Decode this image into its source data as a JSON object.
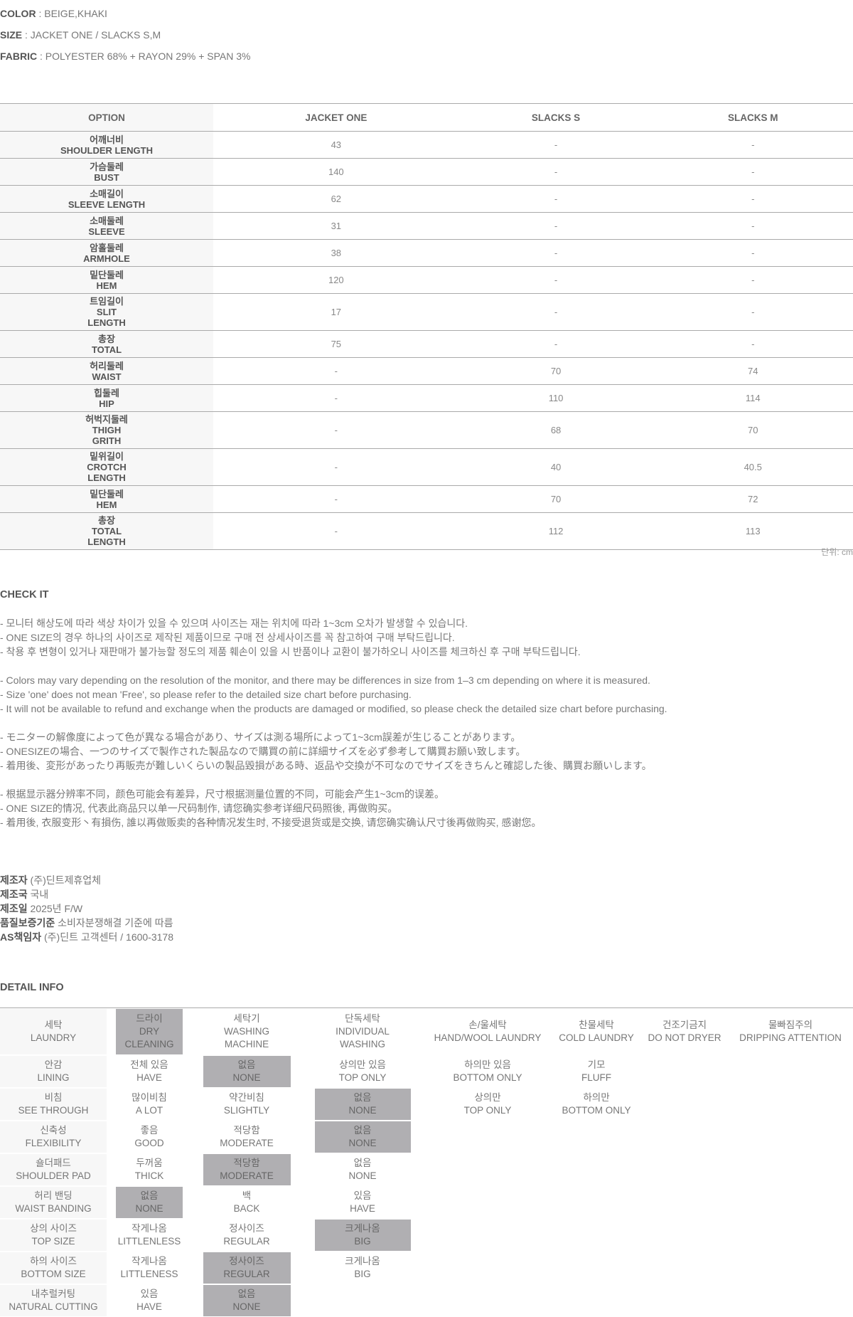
{
  "specs": [
    {
      "label": "COLOR",
      "value": ": BEIGE,KHAKI"
    },
    {
      "label": "SIZE",
      "value": ": JACKET ONE / SLACKS S,M"
    },
    {
      "label": "FABRIC",
      "value": ": POLYESTER 68% + RAYON 29% + SPAN 3%"
    }
  ],
  "size_table": {
    "header": [
      "OPTION",
      "JACKET ONE",
      "SLACKS S",
      "SLACKS M"
    ],
    "rows": [
      {
        "ko": "어깨너비",
        "en": "SHOULDER LENGTH",
        "cells": [
          "43",
          "-",
          "-"
        ]
      },
      {
        "ko": "가슴둘레",
        "en": "BUST",
        "cells": [
          "140",
          "-",
          "-"
        ]
      },
      {
        "ko": "소매길이",
        "en": "SLEEVE LENGTH",
        "cells": [
          "62",
          "-",
          "-"
        ]
      },
      {
        "ko": "소매둘레",
        "en": "SLEEVE",
        "cells": [
          "31",
          "-",
          "-"
        ]
      },
      {
        "ko": "암홀둘레",
        "en": "ARMHOLE",
        "cells": [
          "38",
          "-",
          "-"
        ]
      },
      {
        "ko": "밑단둘레",
        "en": "HEM",
        "cells": [
          "120",
          "-",
          "-"
        ]
      },
      {
        "ko": "트임길이",
        "en": "SLIT\nLENGTH",
        "cells": [
          "17",
          "-",
          "-"
        ]
      },
      {
        "ko": "총장",
        "en": "TOTAL",
        "cells": [
          "75",
          "-",
          "-"
        ]
      },
      {
        "ko": "허리둘레",
        "en": "WAIST",
        "cells": [
          "-",
          "70",
          "74"
        ]
      },
      {
        "ko": "힙둘레",
        "en": "HIP",
        "cells": [
          "-",
          "110",
          "114"
        ]
      },
      {
        "ko": "허벅지둘레",
        "en": "THIGH\nGRITH",
        "cells": [
          "-",
          "68",
          "70"
        ]
      },
      {
        "ko": "밑위길이",
        "en": "CROTCH\nLENGTH",
        "cells": [
          "-",
          "40",
          "40.5"
        ]
      },
      {
        "ko": "밑단둘레",
        "en": "HEM",
        "cells": [
          "-",
          "70",
          "72"
        ]
      },
      {
        "ko": "총장",
        "en": "TOTAL\nLENGTH",
        "cells": [
          "-",
          "112",
          "113"
        ]
      }
    ],
    "unit": "단위: cm"
  },
  "check_it": {
    "title": "CHECK IT",
    "paragraphs": [
      [
        "- 모니터 해상도에 따라 색상 차이가 있을 수 있으며 사이즈는 재는 위치에 따라 1~3cm 오차가 발생할 수 있습니다.",
        "- ONE SIZE의 경우 하나의 사이즈로 제작된 제품이므로 구매 전 상세사이즈를 꼭 참고하여 구매 부탁드립니다.",
        "- 착용 후 변형이 있거나 재판매가 불가능할 정도의 제품 훼손이 있을 시 반품이나 교환이 불가하오니 사이즈를 체크하신 후 구매 부탁드립니다."
      ],
      [
        "- Colors may vary depending on the resolution of the monitor, and there may be differences in size from 1–3 cm depending on where it is measured.",
        "- Size 'one' does not mean 'Free', so please refer to the detailed size chart before purchasing.",
        "- It will not be available to refund and exchange when the products are damaged or modified, so please check the detailed size chart before purchasing."
      ],
      [
        "- モニターの解像度によって色が異なる場合があり、サイズは測る場所によって1~3cm誤差が生じることがあります。",
        "- ONESIZEの場合、一つのサイズで製作された製品なので購買の前に詳細サイズを必ず参考して購買お願い致します。",
        "- 着用後、変形があったり再販売が難しいくらいの製品毀損がある時、返品や交換が不可なのでサイズをきちんと確認した後、購買お願いします。"
      ],
      [
        "- 根据显示器分辨率不同，颜色可能会有差异，尺寸根据测量位置的不同，可能会产生1~3cm的误差。",
        "- ONE SIZE的情况, 代表此商品只以单一尺码制作, 请您确实参考详细尺码照後, 再做购买。",
        "- 着用後, 衣服变形丶有損伤, 誰以再做贩卖的各种情况发生时, 不接受退货或是交换, 请您确实确认尺寸後再做购买, 感谢您。"
      ]
    ]
  },
  "maker": [
    {
      "label": "제조자",
      "value": "(주)딘트제휴업체"
    },
    {
      "label": "제조국",
      "value": "국내"
    },
    {
      "label": "제조일",
      "value": "2025년 F/W"
    },
    {
      "label": "품질보증기준",
      "value": "소비자분쟁해결 기준에 따름"
    },
    {
      "label": "AS책임자",
      "value": "(주)딘트 고객센터 / 1600-3178"
    }
  ],
  "detail_info": {
    "title": "DETAIL INFO",
    "rows": [
      {
        "ko": "세탁",
        "en": "LAUNDRY",
        "options": [
          {
            "ko": "드라이",
            "en": "DRY CLEANING",
            "selected": true
          },
          {
            "ko": "세탁기",
            "en": "WASHING MACHINE",
            "selected": false
          },
          {
            "ko": "단독세탁",
            "en": "INDIVIDUAL WASHING",
            "selected": false
          },
          {
            "ko": "손/울세탁",
            "en": "HAND/WOOL LAUNDRY",
            "selected": false
          },
          {
            "ko": "찬물세탁",
            "en": "COLD LAUNDRY",
            "selected": false
          },
          {
            "ko": "건조기금지",
            "en": "DO NOT DRYER",
            "selected": false
          },
          {
            "ko": "물빠짐주의",
            "en": "DRIPPING ATTENTION",
            "selected": false
          }
        ]
      },
      {
        "ko": "안감",
        "en": "LINING",
        "options": [
          {
            "ko": "전체 있음",
            "en": "HAVE",
            "selected": false
          },
          {
            "ko": "없음",
            "en": "NONE",
            "selected": true
          },
          {
            "ko": "상의만 있음",
            "en": "TOP ONLY",
            "selected": false
          },
          {
            "ko": "하의만 있음",
            "en": "BOTTOM ONLY",
            "selected": false
          },
          {
            "ko": "기모",
            "en": "FLUFF",
            "selected": false
          }
        ]
      },
      {
        "ko": "비침",
        "en": "SEE THROUGH",
        "options": [
          {
            "ko": "많이비침",
            "en": "A LOT",
            "selected": false
          },
          {
            "ko": "약간비침",
            "en": "SLIGHTLY",
            "selected": false
          },
          {
            "ko": "없음",
            "en": "NONE",
            "selected": true
          },
          {
            "ko": "상의만",
            "en": "TOP ONLY",
            "selected": false
          },
          {
            "ko": "하의만",
            "en": "BOTTOM ONLY",
            "selected": false
          }
        ]
      },
      {
        "ko": "신축성",
        "en": "FLEXIBILITY",
        "options": [
          {
            "ko": "좋음",
            "en": "GOOD",
            "selected": false
          },
          {
            "ko": "적당함",
            "en": "MODERATE",
            "selected": false
          },
          {
            "ko": "없음",
            "en": "NONE",
            "selected": true
          }
        ]
      },
      {
        "ko": "숄더패드",
        "en": "SHOULDER PAD",
        "options": [
          {
            "ko": "두꺼움",
            "en": "THICK",
            "selected": false
          },
          {
            "ko": "적당함",
            "en": "MODERATE",
            "selected": true
          },
          {
            "ko": "없음",
            "en": "NONE",
            "selected": false
          }
        ]
      },
      {
        "ko": "허리 밴딩",
        "en": "WAIST BANDING",
        "options": [
          {
            "ko": "없음",
            "en": "NONE",
            "selected": true
          },
          {
            "ko": "백",
            "en": "BACK",
            "selected": false
          },
          {
            "ko": "있음",
            "en": "HAVE",
            "selected": false
          }
        ]
      },
      {
        "ko": "상의 사이즈",
        "en": "TOP SIZE",
        "options": [
          {
            "ko": "작게나옴",
            "en": "LITTLENLESS",
            "selected": false
          },
          {
            "ko": "정사이즈",
            "en": "REGULAR",
            "selected": false
          },
          {
            "ko": "크게나옴",
            "en": "BIG",
            "selected": true
          }
        ]
      },
      {
        "ko": "하의 사이즈",
        "en": "BOTTOM SIZE",
        "options": [
          {
            "ko": "작게나옴",
            "en": "LITTLENESS",
            "selected": false
          },
          {
            "ko": "정사이즈",
            "en": "REGULAR",
            "selected": true
          },
          {
            "ko": "크게나옴",
            "en": "BIG",
            "selected": false
          }
        ]
      },
      {
        "ko": "내추럴커팅",
        "en": "NATURAL CUTTING",
        "options": [
          {
            "ko": "있음",
            "en": "HAVE",
            "selected": false
          },
          {
            "ko": "없음",
            "en": "NONE",
            "selected": true
          }
        ]
      }
    ]
  }
}
